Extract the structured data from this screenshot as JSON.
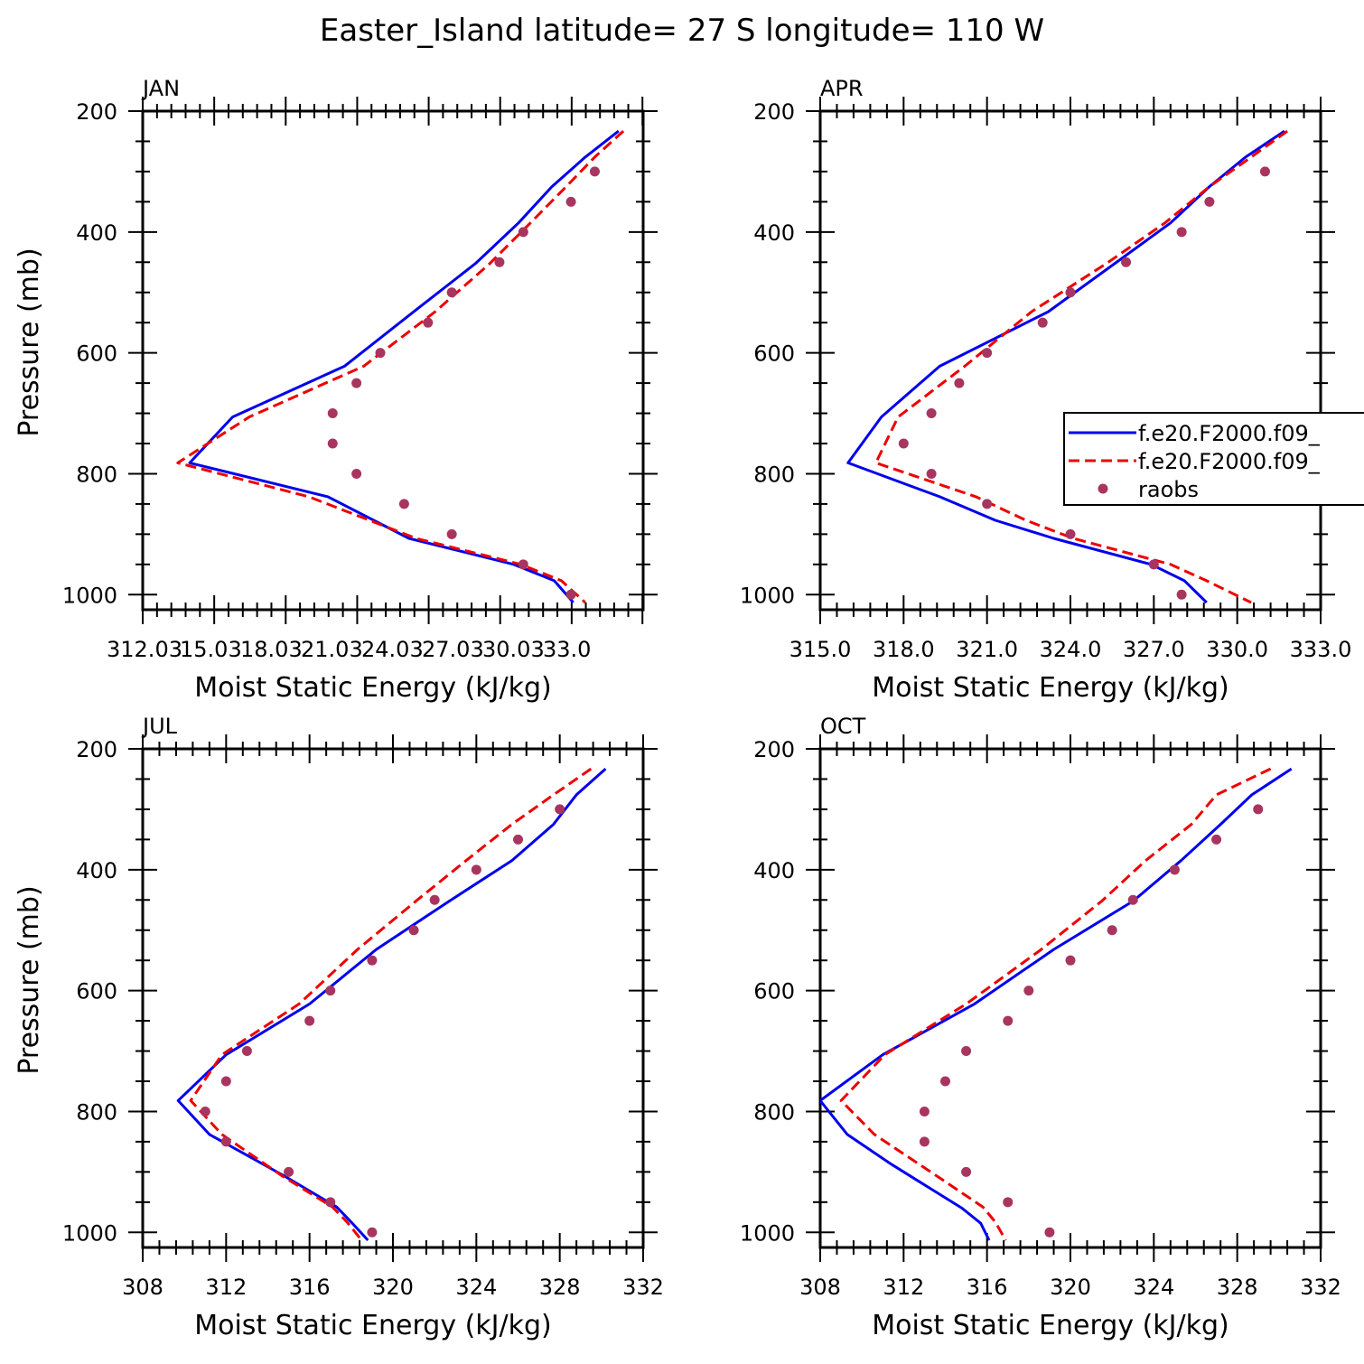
{
  "title": "Easter_Island  latitude= 27 S longitude= 110 W",
  "colors": {
    "model1": "#0000ee",
    "model2": "#ee0000",
    "raobs": "#a8355f"
  },
  "legend": {
    "placement": "right of APR panel",
    "entries": [
      "f.e20.F2000.f09_",
      "f.e20.F2000.f09_",
      "raobs"
    ]
  },
  "chart_data": [
    {
      "type": "line",
      "panel": "JAN",
      "xlabel": "Moist Static Energy (kJ/kg)",
      "ylabel": "Pressure (mb)",
      "xlim": [
        312.03,
        333.03
      ],
      "xticks": [
        312.03,
        315.03,
        318.03,
        321.03,
        324.03,
        327.03,
        330.03,
        333.0
      ],
      "xtick_labels": [
        "312.03",
        "15.03",
        "18.03",
        "21.03",
        "24.03",
        "27.03",
        "30.03",
        "33.0"
      ],
      "ylim": [
        200,
        1025
      ],
      "yticks": [
        200,
        400,
        600,
        800,
        1000
      ],
      "series": [
        {
          "key": "model1",
          "p": [
            233,
            276,
            325,
            385,
            452,
            532,
            622,
            706,
            782,
            838,
            907,
            950,
            977,
            1013
          ],
          "mse": [
            332.0,
            330.6,
            329.2,
            327.8,
            326.0,
            323.4,
            320.5,
            315.8,
            314.0,
            319.8,
            323.2,
            327.6,
            329.3,
            330.1
          ]
        },
        {
          "key": "model2",
          "p": [
            233,
            276,
            325,
            385,
            452,
            532,
            622,
            706,
            782,
            838,
            907,
            950,
            977,
            1013
          ],
          "mse": [
            332.2,
            331.0,
            329.8,
            328.3,
            326.6,
            324.3,
            321.3,
            316.5,
            313.5,
            319.0,
            323.5,
            327.9,
            329.6,
            330.6
          ]
        },
        {
          "key": "raobs",
          "p": [
            300,
            350,
            400,
            450,
            500,
            550,
            600,
            650,
            700,
            750,
            800,
            850,
            900,
            950,
            1000
          ],
          "mse": [
            331.0,
            330.0,
            328.0,
            327.0,
            325.0,
            324.0,
            322.0,
            321.0,
            320.0,
            320.0,
            321.0,
            323.0,
            325.0,
            328.0,
            330.0
          ]
        }
      ]
    },
    {
      "type": "line",
      "panel": "APR",
      "xlabel": "Moist Static Energy (kJ/kg)",
      "ylabel": "",
      "xlim": [
        315.0,
        333.0
      ],
      "xticks": [
        315.0,
        318.0,
        321.0,
        324.0,
        327.0,
        330.0,
        333.0
      ],
      "xtick_labels": [
        "315.0",
        "318.0",
        "321.0",
        "324.0",
        "327.0",
        "330.0",
        "333.0"
      ],
      "ylim": [
        200,
        1025
      ],
      "yticks": [
        200,
        400,
        600,
        800,
        1000
      ],
      "series": [
        {
          "key": "model1",
          "p": [
            233,
            276,
            325,
            385,
            452,
            532,
            622,
            706,
            782,
            838,
            877,
            907,
            950,
            977,
            1013
          ],
          "mse": [
            331.7,
            330.3,
            329.0,
            327.6,
            325.6,
            323.2,
            319.3,
            317.2,
            316.0,
            319.3,
            321.3,
            323.4,
            326.9,
            328.1,
            328.9
          ]
        },
        {
          "key": "model2",
          "p": [
            233,
            276,
            325,
            385,
            452,
            532,
            622,
            706,
            782,
            838,
            877,
            907,
            950,
            977,
            1013
          ],
          "mse": [
            331.8,
            330.5,
            329.0,
            327.4,
            325.3,
            322.6,
            320.2,
            317.8,
            317.0,
            320.6,
            322.4,
            324.1,
            327.6,
            328.9,
            330.5
          ]
        },
        {
          "key": "raobs",
          "p": [
            300,
            350,
            400,
            450,
            500,
            550,
            600,
            650,
            700,
            750,
            800,
            850,
            900,
            950,
            1000
          ],
          "mse": [
            331.0,
            329.0,
            328.0,
            326.0,
            324.0,
            323.0,
            321.0,
            320.0,
            319.0,
            318.0,
            319.0,
            321.0,
            324.0,
            327.0,
            328.0
          ]
        }
      ]
    },
    {
      "type": "line",
      "panel": "JUL",
      "xlabel": "Moist Static Energy (kJ/kg)",
      "ylabel": "Pressure (mb)",
      "xlim": [
        308,
        332
      ],
      "xticks": [
        308,
        312,
        316,
        320,
        324,
        328,
        332
      ],
      "xtick_labels": [
        "308",
        "312",
        "316",
        "320",
        "324",
        "328",
        "332"
      ],
      "ylim": [
        200,
        1025
      ],
      "yticks": [
        200,
        400,
        600,
        800,
        1000
      ],
      "series": [
        {
          "key": "model1",
          "p": [
            233,
            276,
            325,
            385,
            452,
            532,
            622,
            706,
            782,
            838,
            907,
            958,
            983,
            1013
          ],
          "mse": [
            330.2,
            328.8,
            327.7,
            325.7,
            322.7,
            319.2,
            316.0,
            312.0,
            309.7,
            311.2,
            314.8,
            317.3,
            318.0,
            318.8
          ]
        },
        {
          "key": "model2",
          "p": [
            233,
            276,
            325,
            385,
            452,
            532,
            622,
            706,
            782,
            838,
            907,
            958,
            983,
            1013
          ],
          "mse": [
            329.5,
            327.7,
            325.7,
            323.5,
            321.1,
            318.3,
            315.5,
            311.8,
            310.3,
            311.8,
            314.7,
            317.1,
            317.8,
            318.5
          ]
        },
        {
          "key": "raobs",
          "p": [
            300,
            350,
            400,
            450,
            500,
            550,
            600,
            650,
            700,
            750,
            800,
            850,
            900,
            950,
            1000
          ],
          "mse": [
            328.0,
            326.0,
            324.0,
            322.0,
            321.0,
            319.0,
            317.0,
            316.0,
            313.0,
            312.0,
            311.0,
            312.0,
            315.0,
            317.0,
            319.0
          ]
        }
      ]
    },
    {
      "type": "line",
      "panel": "OCT",
      "xlabel": "Moist Static Energy (kJ/kg)",
      "ylabel": "",
      "xlim": [
        308,
        332
      ],
      "xticks": [
        308,
        312,
        316,
        320,
        324,
        328,
        332
      ],
      "xtick_labels": [
        "308",
        "312",
        "316",
        "320",
        "324",
        "328",
        "332"
      ],
      "ylim": [
        200,
        1025
      ],
      "yticks": [
        200,
        400,
        600,
        800,
        1000
      ],
      "series": [
        {
          "key": "model1",
          "p": [
            233,
            276,
            325,
            385,
            452,
            532,
            622,
            706,
            782,
            838,
            887,
            930,
            960,
            985,
            1013
          ],
          "mse": [
            330.6,
            328.7,
            327.2,
            325.3,
            323.0,
            319.2,
            315.4,
            311.0,
            308.0,
            309.3,
            311.4,
            313.4,
            314.8,
            315.7,
            316.1
          ]
        },
        {
          "key": "model2",
          "p": [
            233,
            276,
            325,
            385,
            452,
            532,
            622,
            706,
            782,
            838,
            907,
            958,
            983,
            1013
          ],
          "mse": [
            329.6,
            327.0,
            325.8,
            323.6,
            321.5,
            318.6,
            315.0,
            311.1,
            309.0,
            310.6,
            313.6,
            315.8,
            316.4,
            316.9
          ]
        },
        {
          "key": "raobs",
          "p": [
            300,
            350,
            400,
            450,
            500,
            550,
            600,
            650,
            700,
            750,
            800,
            850,
            900,
            950,
            1000
          ],
          "mse": [
            329.0,
            327.0,
            325.0,
            323.0,
            322.0,
            320.0,
            318.0,
            317.0,
            315.0,
            314.0,
            313.0,
            313.0,
            315.0,
            317.0,
            319.0
          ]
        }
      ]
    }
  ]
}
